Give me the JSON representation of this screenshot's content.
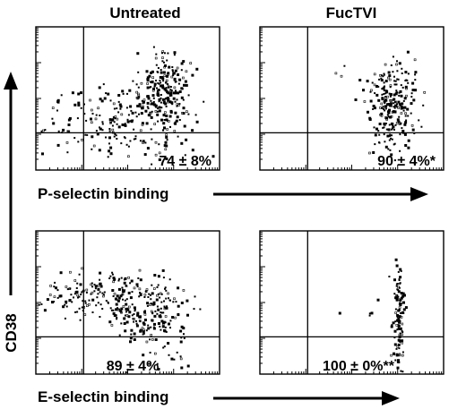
{
  "figure": {
    "column_titles": [
      "Untreated",
      "FucTVI"
    ],
    "y_axis_label": "CD38",
    "row_labels": [
      "P-selectin binding",
      "E-selectin binding"
    ]
  },
  "chart_data": [
    {
      "type": "scatter",
      "row": "P-selectin binding",
      "column": "Untreated",
      "annotation": "74 ± 8%",
      "quadrant_gates": {
        "x": 0.26,
        "y": 0.26
      },
      "clusters": [
        {
          "cx": 0.7,
          "cy": 0.55,
          "sx": 0.07,
          "sy": 0.13,
          "n": 230
        },
        {
          "cx": 0.4,
          "cy": 0.37,
          "sx": 0.22,
          "sy": 0.11,
          "n": 170
        },
        {
          "cx": 0.6,
          "cy": 0.2,
          "sx": 0.22,
          "sy": 0.09,
          "n": 35
        }
      ]
    },
    {
      "type": "scatter",
      "row": "P-selectin binding",
      "column": "FucTVI",
      "annotation": "90 ± 4%*",
      "quadrant_gates": {
        "x": 0.26,
        "y": 0.26
      },
      "clusters": [
        {
          "cx": 0.72,
          "cy": 0.5,
          "sx": 0.07,
          "sy": 0.14,
          "n": 210
        },
        {
          "cx": 0.72,
          "cy": 0.22,
          "sx": 0.06,
          "sy": 0.07,
          "n": 40
        },
        {
          "cx": 0.4,
          "cy": 0.7,
          "sx": 0.04,
          "sy": 0.04,
          "n": 3
        }
      ]
    },
    {
      "type": "scatter",
      "row": "E-selectin binding",
      "column": "Untreated",
      "annotation": "89 ± 4%",
      "quadrant_gates": {
        "x": 0.26,
        "y": 0.26
      },
      "clusters": [
        {
          "cx": 0.6,
          "cy": 0.45,
          "sx": 0.11,
          "sy": 0.13,
          "n": 200
        },
        {
          "cx": 0.3,
          "cy": 0.57,
          "sx": 0.13,
          "sy": 0.08,
          "n": 140
        },
        {
          "cx": 0.7,
          "cy": 0.18,
          "sx": 0.08,
          "sy": 0.09,
          "n": 25
        }
      ]
    },
    {
      "type": "scatter",
      "row": "E-selectin binding",
      "column": "FucTVI",
      "annotation": "100 ± 0%**",
      "quadrant_gates": {
        "x": 0.26,
        "y": 0.26
      },
      "clusters": [
        {
          "cx": 0.75,
          "cy": 0.4,
          "sx": 0.015,
          "sy": 0.18,
          "n": 120
        },
        {
          "cx": 0.5,
          "cy": 0.45,
          "sx": 0.08,
          "sy": 0.05,
          "n": 5
        }
      ]
    }
  ]
}
